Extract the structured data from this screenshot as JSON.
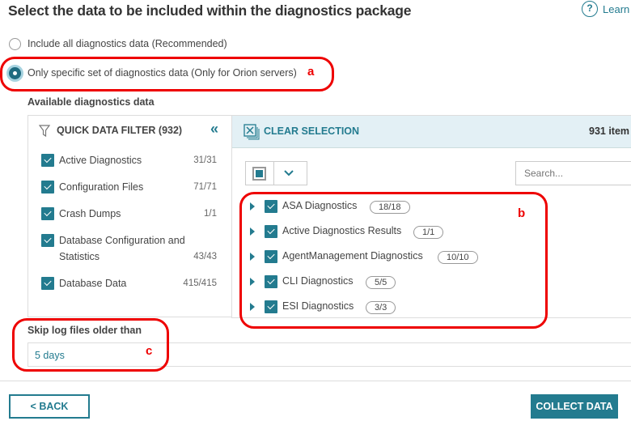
{
  "title": "Select the data to be included within the diagnostics package",
  "help": {
    "icon": "help-circle-icon",
    "label": "Learn"
  },
  "options": [
    {
      "label": "Include all diagnostics data (Recommended)",
      "selected": false
    },
    {
      "label": "Only specific set of diagnostics data (Only for Orion servers)",
      "selected": true
    }
  ],
  "annotations": {
    "a": "a",
    "b": "b",
    "c": "c"
  },
  "available_label": "Available diagnostics data",
  "filter": {
    "title": "QUICK DATA FILTER (932)",
    "collapse": "«",
    "items": [
      {
        "label": "Active Diagnostics",
        "count": "31/31"
      },
      {
        "label": "Configuration Files",
        "count": "71/71"
      },
      {
        "label": "Crash Dumps",
        "count": "1/1"
      },
      {
        "label": "Database Configuration and Statistics",
        "count": "43/43"
      },
      {
        "label": "Database Data",
        "count": "415/415"
      }
    ]
  },
  "list": {
    "clear": "CLEAR SELECTION",
    "items_count": "931 item",
    "search_placeholder": "Search...",
    "items": [
      {
        "label": "ASA Diagnostics",
        "badge": "18/18"
      },
      {
        "label": "Active Diagnostics Results",
        "badge": "1/1"
      },
      {
        "label": "AgentManagement Diagnostics",
        "badge": "10/10"
      },
      {
        "label": "CLI Diagnostics",
        "badge": "5/5"
      },
      {
        "label": "ESI Diagnostics",
        "badge": "3/3"
      }
    ]
  },
  "skip": {
    "label": "Skip log files older than",
    "value": "5 days"
  },
  "buttons": {
    "back": "< BACK",
    "collect": "COLLECT DATA"
  },
  "colors": {
    "accent": "#237b8f",
    "annotation": "#e00000",
    "header_bg": "#e3f0f5"
  }
}
